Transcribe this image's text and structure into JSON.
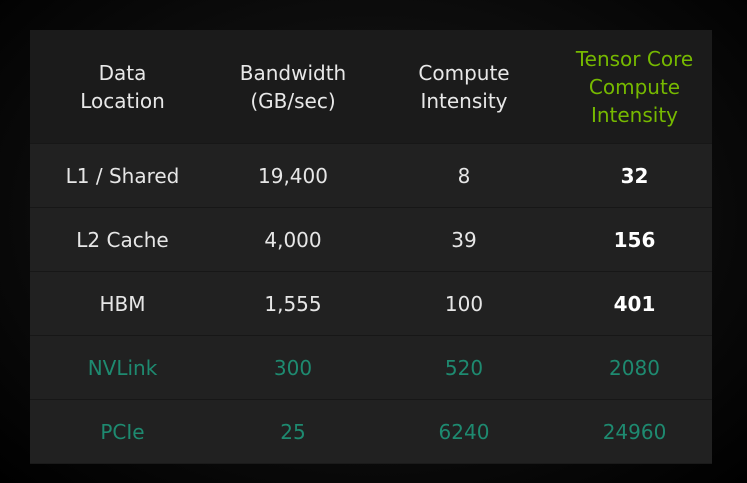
{
  "colors": {
    "background": "#000000",
    "table_header": "#1b1b1b",
    "table_body": "#212121",
    "text": "#e6e6e6",
    "accent_green": "#76b900",
    "teal": "#1e8a70"
  },
  "table": {
    "headers": [
      "Data\nLocation",
      "Bandwidth\n(GB/sec)",
      "Compute\nIntensity",
      "Tensor Core\nCompute\nIntensity"
    ],
    "rows": [
      [
        "L1 / Shared",
        "19,400",
        "8",
        "32"
      ],
      [
        "L2 Cache",
        "4,000",
        "39",
        "156"
      ],
      [
        "HBM",
        "1,555",
        "100",
        "401"
      ],
      [
        "NVLink",
        "300",
        "520",
        "2080"
      ],
      [
        "PCIe",
        "25",
        "6240",
        "24960"
      ]
    ]
  }
}
